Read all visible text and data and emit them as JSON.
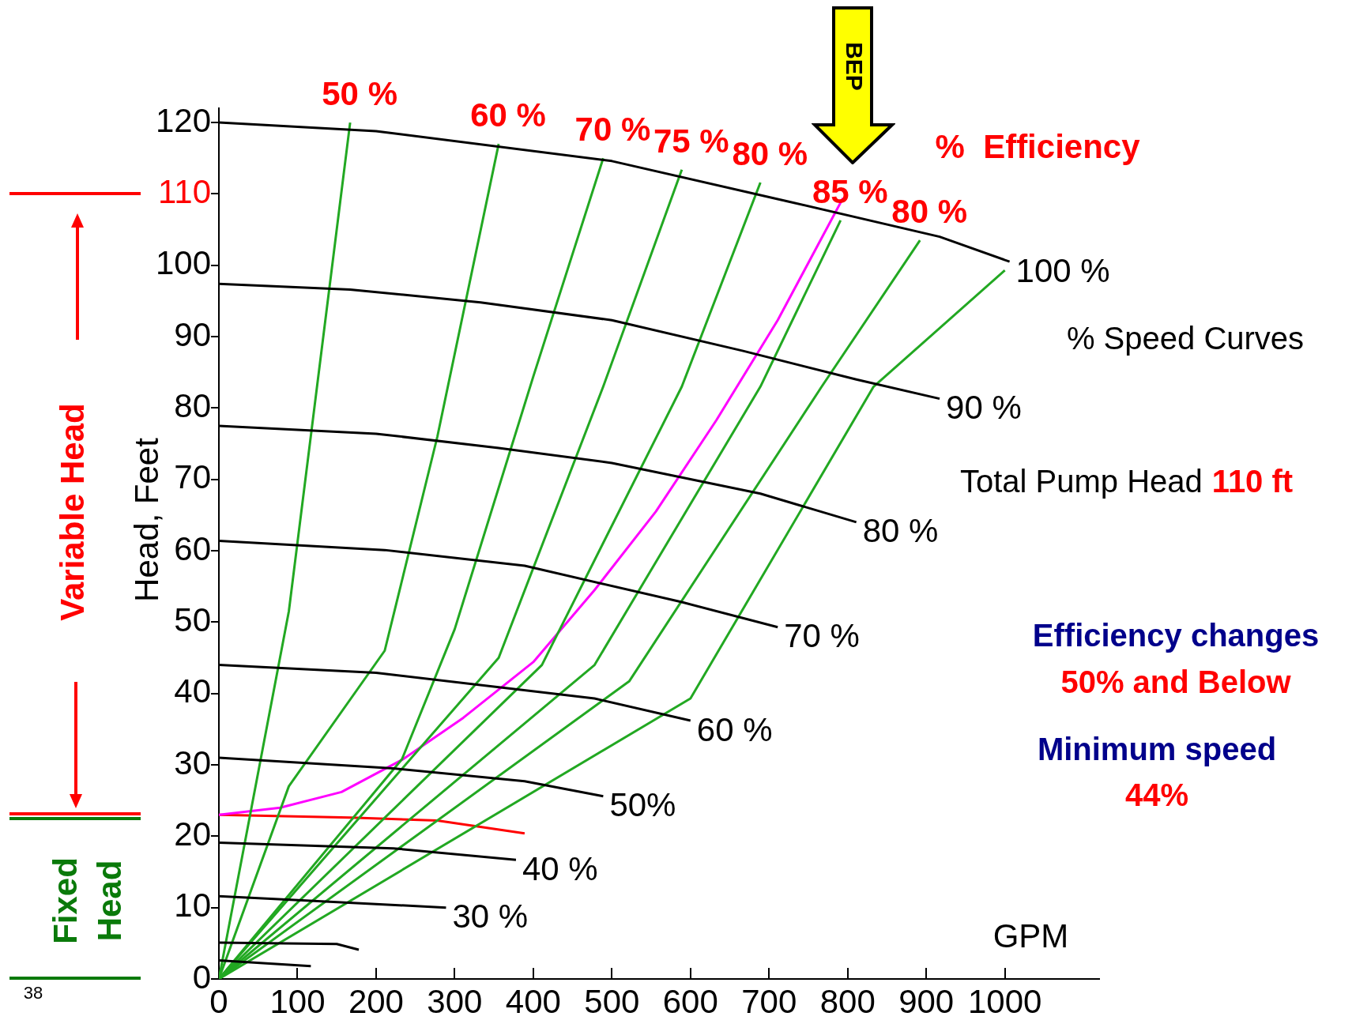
{
  "chart_data": {
    "type": "line",
    "xlabel": "GPM",
    "ylabel": "Head, Feet",
    "xlim": [
      0,
      1120
    ],
    "ylim": [
      0,
      122
    ],
    "xticks": [
      0,
      100,
      200,
      300,
      400,
      500,
      600,
      700,
      800,
      900,
      1000
    ],
    "yticks": [
      0,
      10,
      20,
      30,
      40,
      50,
      60,
      70,
      80,
      90,
      100,
      {
        "value": 110,
        "label": "110"
      },
      120
    ],
    "grid": false,
    "legend": false,
    "marker": "none",
    "line_style": "solid",
    "series": [
      {
        "name": "100 %",
        "color": "#000000",
        "x": [
          0,
          200,
          500,
          722,
          917,
          1006
        ],
        "values": [
          120,
          118.8,
          114.6,
          109,
          104,
          100.5
        ]
      },
      {
        "name": "90 %",
        "color": "#000000",
        "x": [
          0,
          167,
          333,
          500,
          667,
          811,
          917
        ],
        "values": [
          97.4,
          96.6,
          94.8,
          92.3,
          88,
          84,
          81.3
        ]
      },
      {
        "name": "80 %",
        "color": "#000000",
        "x": [
          0,
          200,
          356,
          500,
          689,
          811
        ],
        "values": [
          77.5,
          76.4,
          74.4,
          72.3,
          68,
          64
        ]
      },
      {
        "name": "70 %",
        "color": "#000000",
        "x": [
          0,
          211,
          389,
          589,
          711
        ],
        "values": [
          61.4,
          60.1,
          57.9,
          52.8,
          49.3
        ]
      },
      {
        "name": "60 %",
        "color": "#000000",
        "x": [
          0,
          200,
          478,
          600
        ],
        "values": [
          44,
          42.9,
          39.3,
          36.2
        ]
      },
      {
        "name": "50%",
        "color": "#000000",
        "x": [
          0,
          222,
          389,
          489
        ],
        "values": [
          31,
          29.5,
          27.7,
          25.6
        ]
      },
      {
        "name": "40 %",
        "color": "#000000",
        "x": [
          0,
          222,
          378
        ],
        "values": [
          19.1,
          18.3,
          16.7
        ]
      },
      {
        "name": "30 %",
        "color": "#000000",
        "x": [
          0,
          111,
          289
        ],
        "values": [
          11.6,
          11,
          10
        ]
      },
      {
        "color": "#000000",
        "x": [
          0,
          150,
          178
        ],
        "values": [
          5.1,
          4.9,
          4.1
        ]
      },
      {
        "color": "#000000",
        "x": [
          0,
          117
        ],
        "values": [
          2.6,
          1.8
        ]
      },
      {
        "name": "50 %",
        "color": "#22a822",
        "x": [
          0,
          89,
          167
        ],
        "values": [
          0,
          51.5,
          120
        ]
      },
      {
        "name": "60 %",
        "color": "#22a822",
        "x": [
          0,
          89,
          211,
          278,
          356
        ],
        "values": [
          0,
          27,
          46,
          76,
          117
        ]
      },
      {
        "name": "70 %",
        "color": "#22a822",
        "x": [
          0,
          233,
          300,
          400,
          489
        ],
        "values": [
          0,
          30.8,
          49,
          84.4,
          115
        ]
      },
      {
        "name": "75 %",
        "color": "#22a822",
        "x": [
          0,
          356,
          489,
          589
        ],
        "values": [
          0,
          45,
          83,
          113.4
        ]
      },
      {
        "name": "80 %",
        "color": "#22a822",
        "x": [
          0,
          411,
          589,
          689
        ],
        "values": [
          0,
          44,
          83,
          111.6
        ]
      },
      {
        "name": "85 %",
        "color": "#22a822",
        "x": [
          0,
          478,
          689,
          791
        ],
        "values": [
          0,
          44,
          83,
          106.3
        ]
      },
      {
        "name": "80 %",
        "color": "#22a822",
        "x": [
          0,
          522,
          767,
          892
        ],
        "values": [
          0,
          41.7,
          83,
          103.5
        ]
      },
      {
        "color": "#22a822",
        "x": [
          0,
          600,
          833,
          1000
        ],
        "values": [
          0,
          39.3,
          83,
          99.3
        ]
      },
      {
        "color": "#ff00ff",
        "x": [
          0,
          78,
          156,
          233,
          311,
          400,
          478,
          556,
          633,
          711,
          794
        ],
        "values": [
          23,
          24,
          26.2,
          30.7,
          36.6,
          44.4,
          54.5,
          65.5,
          78.3,
          92.3,
          109.4
        ]
      },
      {
        "color": "#ff0000",
        "x": [
          0,
          167,
          278,
          389
        ],
        "values": [
          23,
          22.6,
          22.2,
          20.4
        ]
      }
    ],
    "annotations": [
      "BEP",
      "%  Efficiency",
      "% Speed Curves",
      "Total Pump Head",
      "110 ft",
      "Efficiency changes",
      "50% and Below",
      "Minimum speed",
      "44%",
      "Variable Head",
      "Fixed Head",
      "38"
    ]
  }
}
